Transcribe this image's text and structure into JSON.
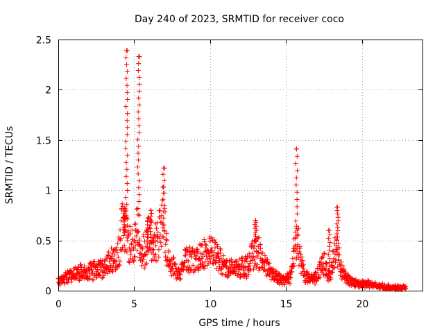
{
  "chart_data": {
    "type": "scatter",
    "title": "Day 240 of 2023, SRMTID for receiver coco",
    "xlabel": "GPS time / hours",
    "ylabel": "SRMTID / TECUs",
    "xlim": [
      0,
      24
    ],
    "ylim": [
      0,
      2.5
    ],
    "xticks": [
      0,
      5,
      10,
      15,
      20
    ],
    "xtick_labels": [
      "0",
      "5",
      "10",
      "15",
      "20"
    ],
    "yticks": [
      0,
      0.5,
      1,
      1.5,
      2,
      2.5
    ],
    "ytick_labels": [
      "0",
      "0.5",
      "1",
      "1.5",
      "2",
      "2.5"
    ],
    "grid": true,
    "marker": "+",
    "series": [
      {
        "name": "SRMTID",
        "color": "#ff0000",
        "trend": [
          [
            0.0,
            0.1
          ],
          [
            0.5,
            0.13
          ],
          [
            1.0,
            0.17
          ],
          [
            1.5,
            0.2
          ],
          [
            2.0,
            0.2
          ],
          [
            2.5,
            0.22
          ],
          [
            3.0,
            0.22
          ],
          [
            3.3,
            0.3
          ],
          [
            3.6,
            0.34
          ],
          [
            4.0,
            0.4
          ],
          [
            4.2,
            0.65
          ],
          [
            4.4,
            0.7
          ],
          [
            4.6,
            0.48
          ],
          [
            5.0,
            0.5
          ],
          [
            5.2,
            0.65
          ],
          [
            5.5,
            0.4
          ],
          [
            5.8,
            0.45
          ],
          [
            6.0,
            0.6
          ],
          [
            6.3,
            0.5
          ],
          [
            6.6,
            0.55
          ],
          [
            6.9,
            0.9
          ],
          [
            7.1,
            0.45
          ],
          [
            7.5,
            0.25
          ],
          [
            8.0,
            0.2
          ],
          [
            8.5,
            0.35
          ],
          [
            9.0,
            0.3
          ],
          [
            9.5,
            0.4
          ],
          [
            10.0,
            0.4
          ],
          [
            10.5,
            0.35
          ],
          [
            11.0,
            0.25
          ],
          [
            11.5,
            0.22
          ],
          [
            12.0,
            0.25
          ],
          [
            12.5,
            0.25
          ],
          [
            13.0,
            0.45
          ],
          [
            13.3,
            0.35
          ],
          [
            13.8,
            0.25
          ],
          [
            14.3,
            0.15
          ],
          [
            14.8,
            0.1
          ],
          [
            15.3,
            0.15
          ],
          [
            15.6,
            0.45
          ],
          [
            15.8,
            0.5
          ],
          [
            16.0,
            0.3
          ],
          [
            16.3,
            0.15
          ],
          [
            16.8,
            0.12
          ],
          [
            17.2,
            0.2
          ],
          [
            17.5,
            0.3
          ],
          [
            17.8,
            0.15
          ],
          [
            18.0,
            0.2
          ],
          [
            18.3,
            0.5
          ],
          [
            18.6,
            0.25
          ],
          [
            19.0,
            0.12
          ],
          [
            19.5,
            0.08
          ],
          [
            20.0,
            0.07
          ],
          [
            20.5,
            0.07
          ],
          [
            21.0,
            0.05
          ],
          [
            21.5,
            0.04
          ],
          [
            22.0,
            0.03
          ],
          [
            22.5,
            0.03
          ],
          [
            22.9,
            0.03
          ]
        ],
        "spikes": [
          [
            4.5,
            0.65,
            2.39
          ],
          [
            5.3,
            0.75,
            2.33
          ],
          [
            6.95,
            0.6,
            1.22
          ],
          [
            15.7,
            0.55,
            1.41
          ],
          [
            18.4,
            0.5,
            0.83
          ],
          [
            4.35,
            0.55,
            0.82
          ],
          [
            13.0,
            0.5,
            0.7
          ],
          [
            17.85,
            0.2,
            0.6
          ],
          [
            6.1,
            0.5,
            0.8
          ],
          [
            5.9,
            0.4,
            0.72
          ]
        ]
      }
    ]
  }
}
